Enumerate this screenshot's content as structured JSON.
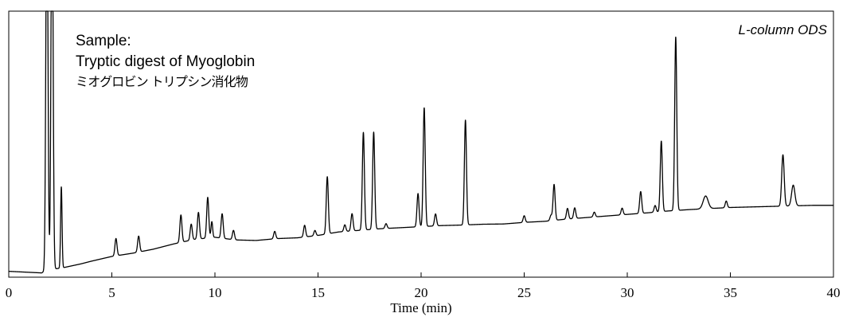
{
  "chart_data": {
    "type": "line",
    "title": "",
    "xlabel": "Time (min)",
    "ylabel": "",
    "xlim": [
      0,
      40
    ],
    "ylim": [
      0,
      100
    ],
    "x_ticks": [
      0,
      5,
      10,
      15,
      20,
      25,
      30,
      35,
      40
    ],
    "grid": false,
    "legend": "none",
    "annotations": {
      "sample_label": "Sample:",
      "sample_name_en": "Tryptic digest of Myoglobin",
      "sample_name_ja": "ミオグロビン トリプシン消化物",
      "column": "L-column ODS"
    },
    "series": [
      {
        "line_color": "#000000",
        "baseline": [
          [
            0,
            2.2
          ],
          [
            1.6,
            1.6
          ],
          [
            1.8,
            2.6
          ],
          [
            2.6,
            3.5
          ],
          [
            3.5,
            5.0
          ],
          [
            4.0,
            6.0
          ],
          [
            5.0,
            7.8
          ],
          [
            6.0,
            9.0
          ],
          [
            7.0,
            10.5
          ],
          [
            8.0,
            12.5
          ],
          [
            9.0,
            14.2
          ],
          [
            10.0,
            15.0
          ],
          [
            11.0,
            14.0
          ],
          [
            12.0,
            13.8
          ],
          [
            13.0,
            14.5
          ],
          [
            14.0,
            14.8
          ],
          [
            15.0,
            15.7
          ],
          [
            16.0,
            17.0
          ],
          [
            17.0,
            17.6
          ],
          [
            18.0,
            18.2
          ],
          [
            19.0,
            18.6
          ],
          [
            20.0,
            19.0
          ],
          [
            21.0,
            19.4
          ],
          [
            22.0,
            19.6
          ],
          [
            23.0,
            19.9
          ],
          [
            24.0,
            20.0
          ],
          [
            25.0,
            20.6
          ],
          [
            26.0,
            21.0
          ],
          [
            27.0,
            21.8
          ],
          [
            28.0,
            22.4
          ],
          [
            29.0,
            23.0
          ],
          [
            30.0,
            23.6
          ],
          [
            31.0,
            24.2
          ],
          [
            32.0,
            24.9
          ],
          [
            33.0,
            25.4
          ],
          [
            34.0,
            25.8
          ],
          [
            35.0,
            26.2
          ],
          [
            36.0,
            26.4
          ],
          [
            37.0,
            26.6
          ],
          [
            38.0,
            26.8
          ],
          [
            39.0,
            27.0
          ],
          [
            40.0,
            27.0
          ]
        ],
        "solvent_front_peaks": [
          {
            "rt": 1.85,
            "height": 150,
            "width": 0.05
          },
          {
            "rt": 2.1,
            "height": 150,
            "width": 0.05
          }
        ],
        "peaks": [
          {
            "rt": 2.55,
            "height": 30.5,
            "width": 0.035
          },
          {
            "rt": 5.2,
            "height": 6.5,
            "width": 0.05
          },
          {
            "rt": 6.3,
            "height": 6.0,
            "width": 0.05
          },
          {
            "rt": 8.35,
            "height": 10.3,
            "width": 0.05
          },
          {
            "rt": 8.85,
            "height": 6.0,
            "width": 0.05
          },
          {
            "rt": 9.2,
            "height": 10.0,
            "width": 0.05
          },
          {
            "rt": 9.65,
            "height": 15.3,
            "width": 0.05
          },
          {
            "rt": 9.85,
            "height": 6.0,
            "width": 0.04
          },
          {
            "rt": 10.35,
            "height": 9.2,
            "width": 0.05
          },
          {
            "rt": 10.9,
            "height": 3.5,
            "width": 0.05
          },
          {
            "rt": 12.9,
            "height": 2.8,
            "width": 0.05
          },
          {
            "rt": 14.35,
            "height": 4.4,
            "width": 0.05
          },
          {
            "rt": 14.85,
            "height": 2.0,
            "width": 0.05
          },
          {
            "rt": 15.45,
            "height": 21.5,
            "width": 0.05
          },
          {
            "rt": 16.3,
            "height": 2.5,
            "width": 0.05
          },
          {
            "rt": 16.65,
            "height": 6.5,
            "width": 0.05
          },
          {
            "rt": 17.2,
            "height": 36.7,
            "width": 0.05
          },
          {
            "rt": 17.7,
            "height": 36.5,
            "width": 0.05
          },
          {
            "rt": 18.3,
            "height": 1.8,
            "width": 0.05
          },
          {
            "rt": 19.85,
            "height": 12.5,
            "width": 0.05
          },
          {
            "rt": 20.15,
            "height": 44.6,
            "width": 0.05
          },
          {
            "rt": 20.7,
            "height": 4.5,
            "width": 0.05
          },
          {
            "rt": 22.15,
            "height": 39.4,
            "width": 0.05
          },
          {
            "rt": 25.0,
            "height": 2.5,
            "width": 0.05
          },
          {
            "rt": 26.3,
            "height": 2.0,
            "width": 0.05
          },
          {
            "rt": 26.45,
            "height": 13.5,
            "width": 0.05
          },
          {
            "rt": 27.1,
            "height": 4.0,
            "width": 0.05
          },
          {
            "rt": 27.45,
            "height": 4.0,
            "width": 0.05
          },
          {
            "rt": 28.4,
            "height": 1.8,
            "width": 0.05
          },
          {
            "rt": 29.75,
            "height": 2.5,
            "width": 0.05
          },
          {
            "rt": 30.65,
            "height": 8.2,
            "width": 0.05
          },
          {
            "rt": 31.35,
            "height": 2.5,
            "width": 0.05
          },
          {
            "rt": 31.65,
            "height": 26.5,
            "width": 0.05
          },
          {
            "rt": 32.35,
            "height": 65.2,
            "width": 0.05
          },
          {
            "rt": 33.8,
            "height": 4.8,
            "width": 0.12
          },
          {
            "rt": 34.8,
            "height": 2.5,
            "width": 0.05
          },
          {
            "rt": 37.55,
            "height": 19.3,
            "width": 0.06
          },
          {
            "rt": 38.05,
            "height": 7.8,
            "width": 0.08
          }
        ]
      }
    ]
  }
}
